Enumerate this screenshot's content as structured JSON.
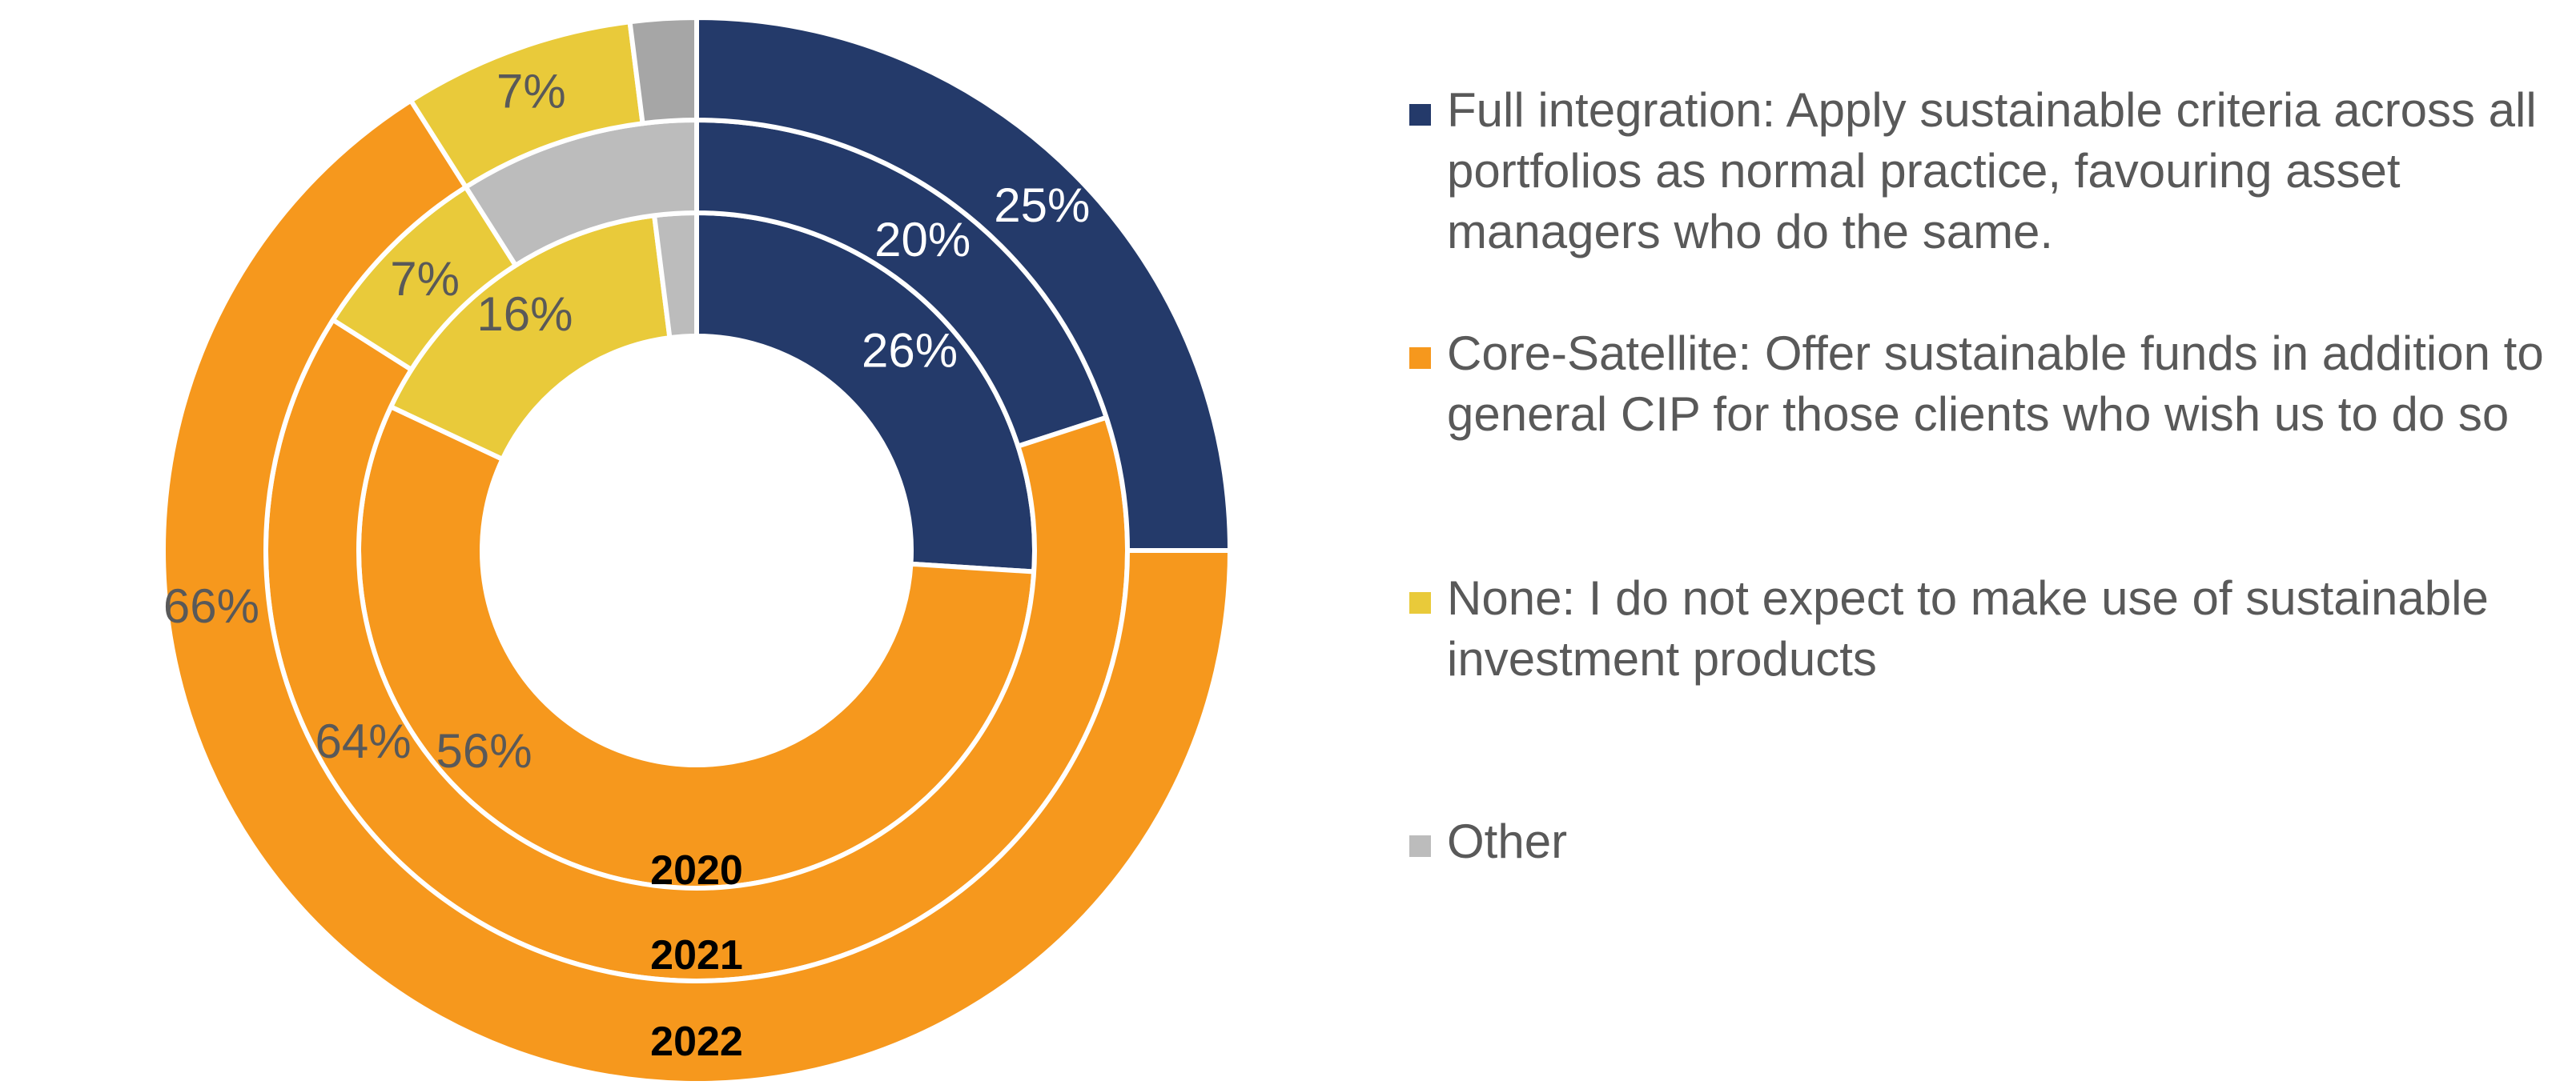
{
  "chart_data": {
    "type": "pie",
    "subtype": "multi-level donut",
    "ring_order": "inner to outer",
    "categories": [
      "Full integration: Apply sustainable criteria across all portfolios as normal practice, favouring asset managers who do the same.",
      "Core-Satellite: Offer sustainable funds in addition to general CIP for those clients who wish us to do so",
      "None: I do not expect to make use of sustainable investment products",
      "Other"
    ],
    "colors": [
      "#243a6a",
      "#f6981d",
      "#e9ca3a",
      "#bcbcbc"
    ],
    "series": [
      {
        "name": "2020",
        "values": [
          26,
          56,
          16,
          2
        ],
        "labels": [
          "26%",
          "56%",
          "16%",
          ""
        ]
      },
      {
        "name": "2021",
        "values": [
          20,
          64,
          7,
          9
        ],
        "labels": [
          "20%",
          "64%",
          "7%",
          ""
        ]
      },
      {
        "name": "2022",
        "values": [
          25,
          66,
          7,
          2
        ],
        "labels": [
          "25%",
          "66%",
          "7%",
          ""
        ]
      }
    ],
    "legend_position": "right"
  },
  "ring_colors_other": [
    "#bcbcbc",
    "#bcbcbc",
    "#a6a6a6"
  ],
  "label_color_on_dark": "#ffffff",
  "label_color_on_light": "#595959",
  "legend": {
    "items": [
      {
        "label": "Full integration: Apply sustainable criteria across all portfolios as normal practice, favouring asset managers who do the same.",
        "color": "#243a6a"
      },
      {
        "label": "Core-Satellite: Offer sustainable funds in addition to general CIP for those clients who wish us to do so",
        "color": "#f6981d"
      },
      {
        "label": "None: I do not expect to make use of sustainable investment products",
        "color": "#e9ca3a"
      },
      {
        "label": "Other",
        "color": "#bcbcbc"
      }
    ]
  }
}
